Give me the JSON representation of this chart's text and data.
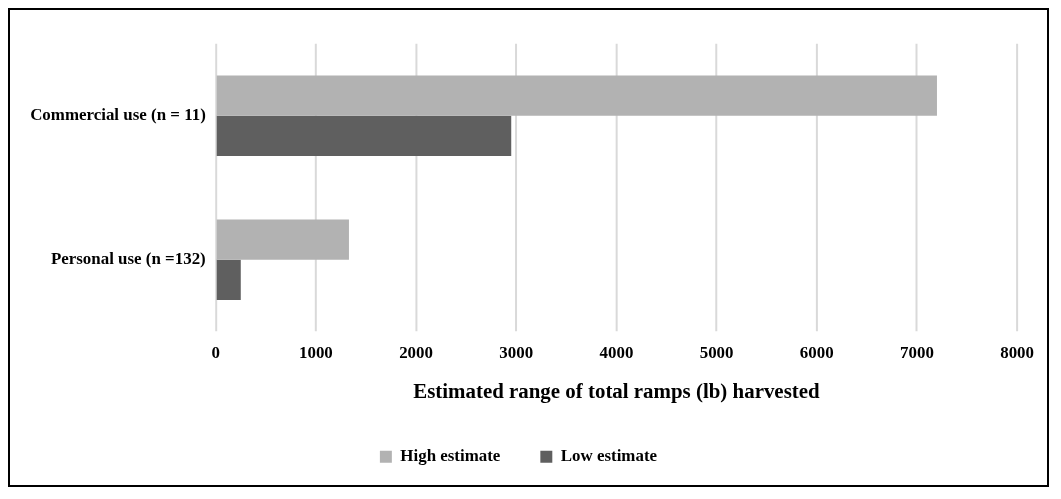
{
  "chart_data": {
    "type": "bar",
    "orientation": "horizontal",
    "xlabel": "Estimated range of total ramps (lb) harvested",
    "categories": [
      "Commercial use (n = 11)",
      "Personal use (n =132)"
    ],
    "series": [
      {
        "name": "High estimate",
        "color": "#b2b2b2",
        "values": [
          7200,
          1330
        ]
      },
      {
        "name": "Low estimate",
        "color": "#5f5f5f",
        "values": [
          2950,
          250
        ]
      }
    ],
    "xlim": [
      0,
      8000
    ],
    "xticks": [
      0,
      1000,
      2000,
      3000,
      4000,
      5000,
      6000,
      7000,
      8000
    ],
    "grid": "x",
    "legend": "bottom"
  }
}
